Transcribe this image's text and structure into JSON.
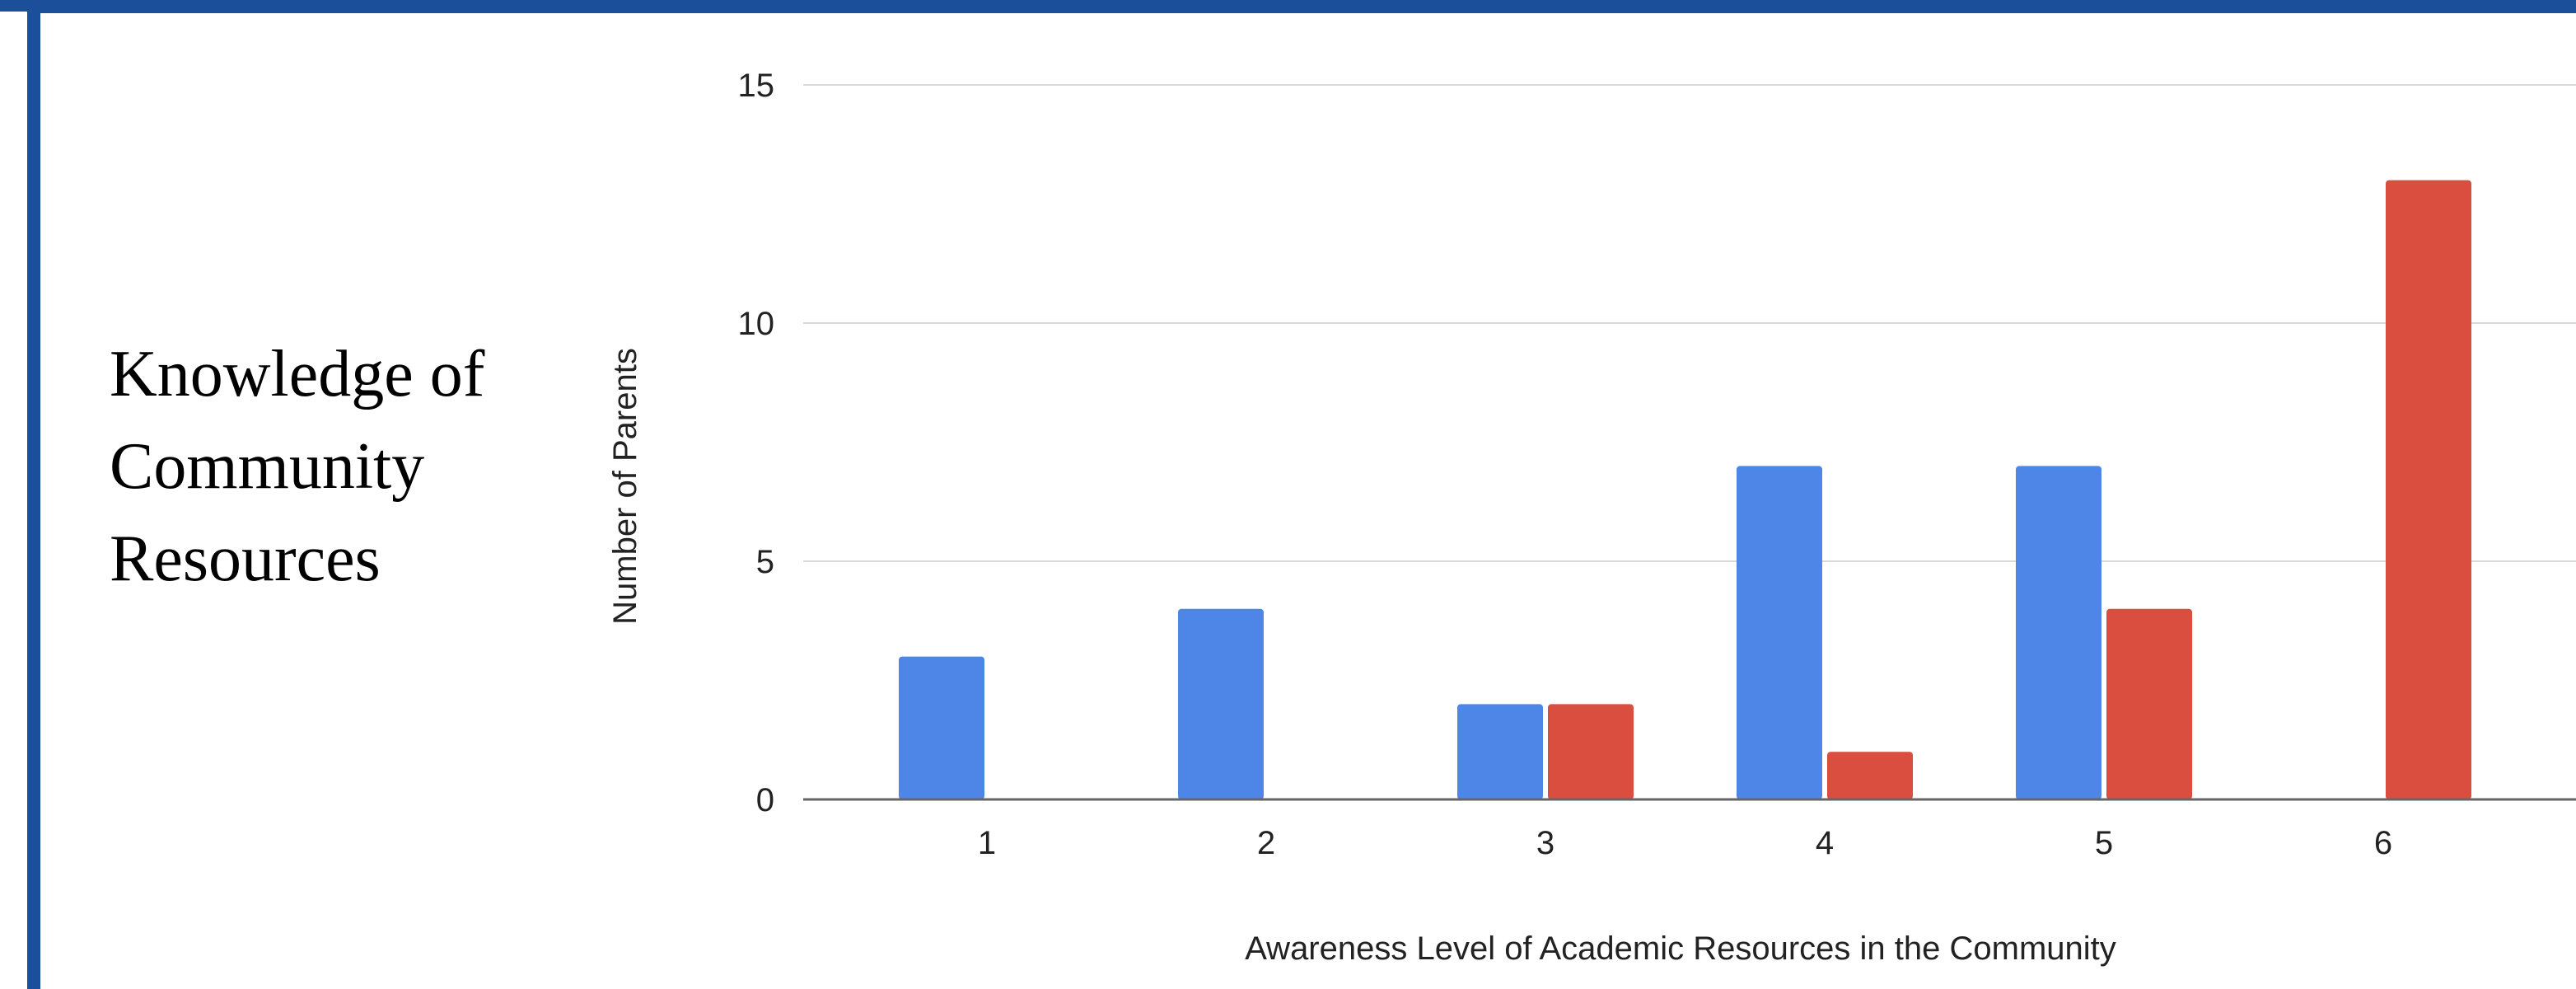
{
  "side_title": [
    "Knowledge of",
    "Community",
    "Resources"
  ],
  "colors": {
    "frame": "#1c4f9a",
    "series1": "#4e86e8",
    "series2": "#d94e3f",
    "grid": "#d9d9d9",
    "axis": "#666666",
    "text": "#222222"
  },
  "chart_data": {
    "type": "bar",
    "categories": [
      "1",
      "2",
      "3",
      "4",
      "5",
      "6"
    ],
    "series": [
      {
        "values": [
          3,
          4,
          2,
          7,
          7,
          0
        ],
        "color": "#4e86e8"
      },
      {
        "values": [
          0,
          0,
          2,
          1,
          4,
          13
        ],
        "color": "#d94e3f"
      }
    ],
    "title": "",
    "xlabel": "Awareness Level of Academic Resources in the Community",
    "ylabel": "Number of Parents",
    "ylim": [
      0,
      15
    ],
    "yticks": [
      "0",
      "5",
      "10",
      "15"
    ],
    "grid": true,
    "legend": "none"
  }
}
